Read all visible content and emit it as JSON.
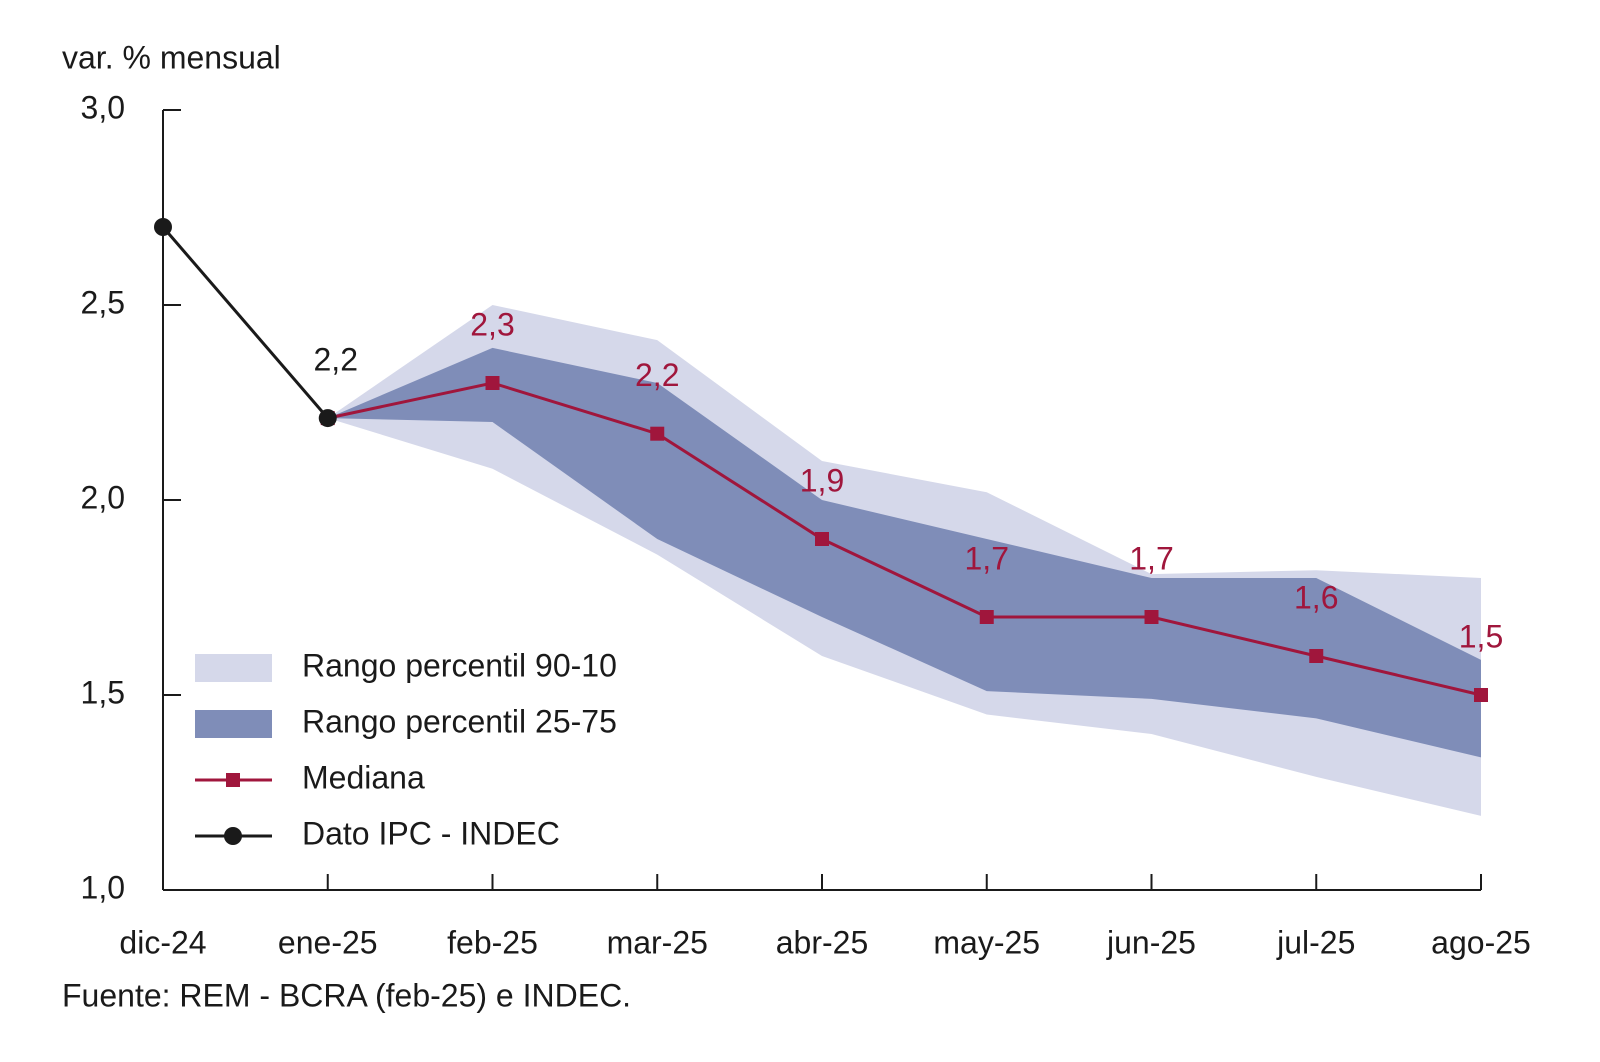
{
  "chart_data": {
    "type": "line",
    "ylabel": "var. % mensual",
    "source": "Fuente: REM - BCRA (feb-25) e INDEC.",
    "categories": [
      "dic-24",
      "ene-25",
      "feb-25",
      "mar-25",
      "abr-25",
      "may-25",
      "jun-25",
      "jul-25",
      "ago-25"
    ],
    "ylim": [
      1,
      3
    ],
    "yticks": [
      {
        "value": 1,
        "label": "1,0"
      },
      {
        "value": 1.5,
        "label": "1,5"
      },
      {
        "value": 2,
        "label": "2,0"
      },
      {
        "value": 2.5,
        "label": "2,5"
      },
      {
        "value": 3,
        "label": "3,0"
      }
    ],
    "legend": "lower left",
    "series": [
      {
        "name": "Rango percentil 90-10",
        "kind": "band",
        "color": "#d5d8ea",
        "upper": [
          null,
          2.21,
          2.5,
          2.41,
          2.1,
          2.02,
          1.81,
          1.82,
          1.8
        ],
        "lower": [
          null,
          2.21,
          2.08,
          1.86,
          1.6,
          1.45,
          1.4,
          1.29,
          1.19
        ]
      },
      {
        "name": "Rango percentil 25-75",
        "kind": "band",
        "color": "#7f8db8",
        "upper": [
          null,
          2.21,
          2.39,
          2.3,
          2.0,
          1.9,
          1.8,
          1.8,
          1.59
        ],
        "lower": [
          null,
          2.21,
          2.2,
          1.9,
          1.7,
          1.51,
          1.49,
          1.44,
          1.34
        ]
      },
      {
        "name": "Mediana",
        "kind": "line",
        "marker": "square",
        "color": "#a0163c",
        "values": [
          null,
          2.21,
          2.3,
          2.17,
          1.9,
          1.7,
          1.7,
          1.6,
          1.5
        ],
        "value_labels": [
          null,
          null,
          "2,3",
          "2,2",
          "1,9",
          "1,7",
          "1,7",
          "1,6",
          "1,5"
        ]
      },
      {
        "name": "Dato IPC - INDEC",
        "kind": "line",
        "marker": "circle",
        "color": "#1a1a1a",
        "values": [
          2.7,
          2.21,
          null,
          null,
          null,
          null,
          null,
          null,
          null
        ],
        "value_labels": [
          null,
          "2,2",
          null,
          null,
          null,
          null,
          null,
          null,
          null
        ]
      }
    ]
  }
}
